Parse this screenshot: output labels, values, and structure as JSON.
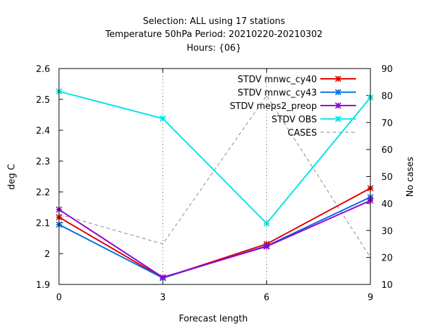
{
  "chart_data": {
    "type": "line",
    "title_lines": [
      "Selection: ALL using    17 stations",
      "Temperature 50hPa   Period: 20210220-20210302",
      "Hours: {06}"
    ],
    "xlabel": "Forecast length",
    "ylabel": "deg C",
    "y2label": "No cases",
    "x": [
      0,
      3,
      6,
      9
    ],
    "xlim": [
      0,
      9
    ],
    "ylim": [
      1.9,
      2.6
    ],
    "y2lim": [
      10,
      90
    ],
    "xticks": [
      "0",
      "3",
      "6",
      "9"
    ],
    "yticks": [
      "1.9",
      "2",
      "2.1",
      "2.2",
      "2.3",
      "2.4",
      "2.5",
      "2.6"
    ],
    "y2ticks": [
      "10",
      "20",
      "30",
      "40",
      "50",
      "60",
      "70",
      "80",
      "90"
    ],
    "grid": "dotted vertical at x ticks",
    "legend_position": "top-right",
    "series": [
      {
        "name": "STDV mnwc_cy40",
        "color": "#e00000",
        "axis": "y",
        "values": [
          2.118,
          1.921,
          2.031,
          2.212
        ]
      },
      {
        "name": "STDV mnwc_cy43",
        "color": "#0070e0",
        "axis": "y",
        "values": [
          2.094,
          1.921,
          2.025,
          2.183
        ]
      },
      {
        "name": "STDV meps2_preop",
        "color": "#9400d3",
        "axis": "y",
        "values": [
          2.143,
          1.923,
          2.023,
          2.172
        ]
      },
      {
        "name": "STDV OBS",
        "color": "#00e5e5",
        "axis": "y",
        "values": [
          2.526,
          2.438,
          2.098,
          2.506
        ]
      },
      {
        "name": "CASES",
        "color": "#888888",
        "axis": "y2",
        "dashed": true,
        "values": [
          36,
          25,
          80,
          20
        ]
      }
    ]
  }
}
